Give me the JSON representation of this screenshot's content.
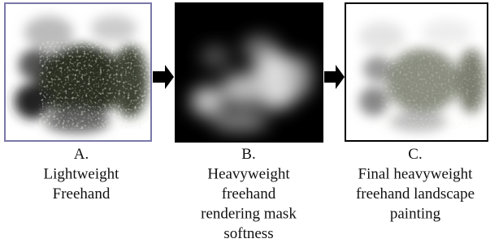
{
  "panels": [
    {
      "label": "A.",
      "caption_lines": [
        "Lightweight",
        "Freehand"
      ]
    },
    {
      "label": "B.",
      "caption_lines": [
        "Heavyweight",
        "freehand",
        "rendering mask",
        "softness"
      ]
    },
    {
      "label": "C.",
      "caption_lines": [
        "Final heavyweight",
        "freehand landscape",
        "painting"
      ]
    }
  ]
}
